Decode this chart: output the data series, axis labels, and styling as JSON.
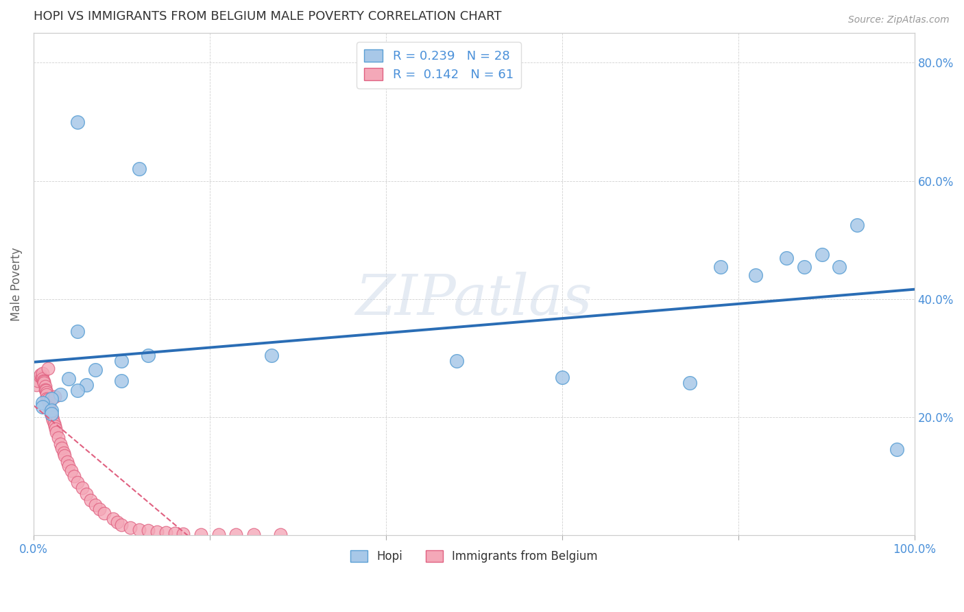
{
  "title": "HOPI VS IMMIGRANTS FROM BELGIUM MALE POVERTY CORRELATION CHART",
  "source_text": "Source: ZipAtlas.com",
  "ylabel": "Male Poverty",
  "watermark": "ZIPatlas",
  "xlim": [
    0.0,
    1.0
  ],
  "ylim": [
    0.0,
    0.85
  ],
  "xtick_vals": [
    0.0,
    0.2,
    0.4,
    0.6,
    0.8,
    1.0
  ],
  "xticklabels": [
    "0.0%",
    "",
    "",
    "",
    "",
    "100.0%"
  ],
  "ytick_vals": [
    0.0,
    0.2,
    0.4,
    0.6,
    0.8
  ],
  "yticklabels": [
    "",
    "20.0%",
    "40.0%",
    "60.0%",
    "80.0%"
  ],
  "hopi_color": "#a8c8e8",
  "hopi_edge_color": "#5a9fd4",
  "belgium_color": "#f4a8b8",
  "belgium_edge_color": "#e06080",
  "hopi_line_color": "#2a6db5",
  "belgium_line_color": "#e06080",
  "R_hopi": 0.239,
  "N_hopi": 28,
  "R_belgium": 0.142,
  "N_belgium": 61,
  "hopi_x": [
    0.05,
    0.12,
    0.05,
    0.1,
    0.13,
    0.07,
    0.04,
    0.06,
    0.1,
    0.05,
    0.03,
    0.02,
    0.01,
    0.01,
    0.02,
    0.02,
    0.48,
    0.78,
    0.82,
    0.855,
    0.875,
    0.895,
    0.915,
    0.935,
    0.6,
    0.745,
    0.98,
    0.27
  ],
  "hopi_y": [
    0.7,
    0.62,
    0.345,
    0.295,
    0.305,
    0.28,
    0.265,
    0.255,
    0.262,
    0.245,
    0.238,
    0.232,
    0.225,
    0.218,
    0.212,
    0.206,
    0.295,
    0.455,
    0.44,
    0.47,
    0.455,
    0.475,
    0.455,
    0.525,
    0.267,
    0.258,
    0.145,
    0.305
  ],
  "belgium_x": [
    0.003,
    0.005,
    0.007,
    0.008,
    0.009,
    0.01,
    0.01,
    0.011,
    0.012,
    0.012,
    0.013,
    0.013,
    0.014,
    0.015,
    0.015,
    0.015,
    0.016,
    0.017,
    0.018,
    0.018,
    0.019,
    0.02,
    0.021,
    0.022,
    0.023,
    0.024,
    0.025,
    0.026,
    0.028,
    0.03,
    0.032,
    0.034,
    0.035,
    0.038,
    0.04,
    0.043,
    0.046,
    0.05,
    0.055,
    0.06,
    0.065,
    0.07,
    0.075,
    0.08,
    0.09,
    0.095,
    0.1,
    0.11,
    0.12,
    0.13,
    0.14,
    0.15,
    0.16,
    0.17,
    0.19,
    0.21,
    0.23,
    0.25,
    0.28,
    0.016,
    0.024
  ],
  "belgium_y": [
    0.255,
    0.262,
    0.27,
    0.272,
    0.268,
    0.275,
    0.265,
    0.262,
    0.26,
    0.258,
    0.252,
    0.247,
    0.245,
    0.242,
    0.238,
    0.232,
    0.23,
    0.225,
    0.22,
    0.215,
    0.21,
    0.205,
    0.2,
    0.195,
    0.19,
    0.185,
    0.18,
    0.175,
    0.165,
    0.155,
    0.148,
    0.14,
    0.135,
    0.125,
    0.118,
    0.11,
    0.1,
    0.09,
    0.08,
    0.07,
    0.06,
    0.052,
    0.045,
    0.038,
    0.028,
    0.022,
    0.018,
    0.013,
    0.01,
    0.008,
    0.006,
    0.005,
    0.004,
    0.003,
    0.002,
    0.002,
    0.002,
    0.002,
    0.002,
    0.282,
    0.235
  ],
  "background_color": "#ffffff",
  "grid_color": "#cccccc",
  "title_color": "#333333",
  "title_fontsize": 13,
  "axis_label_color": "#666666",
  "tick_color": "#4a90d9",
  "legend_color": "#4a90d9"
}
